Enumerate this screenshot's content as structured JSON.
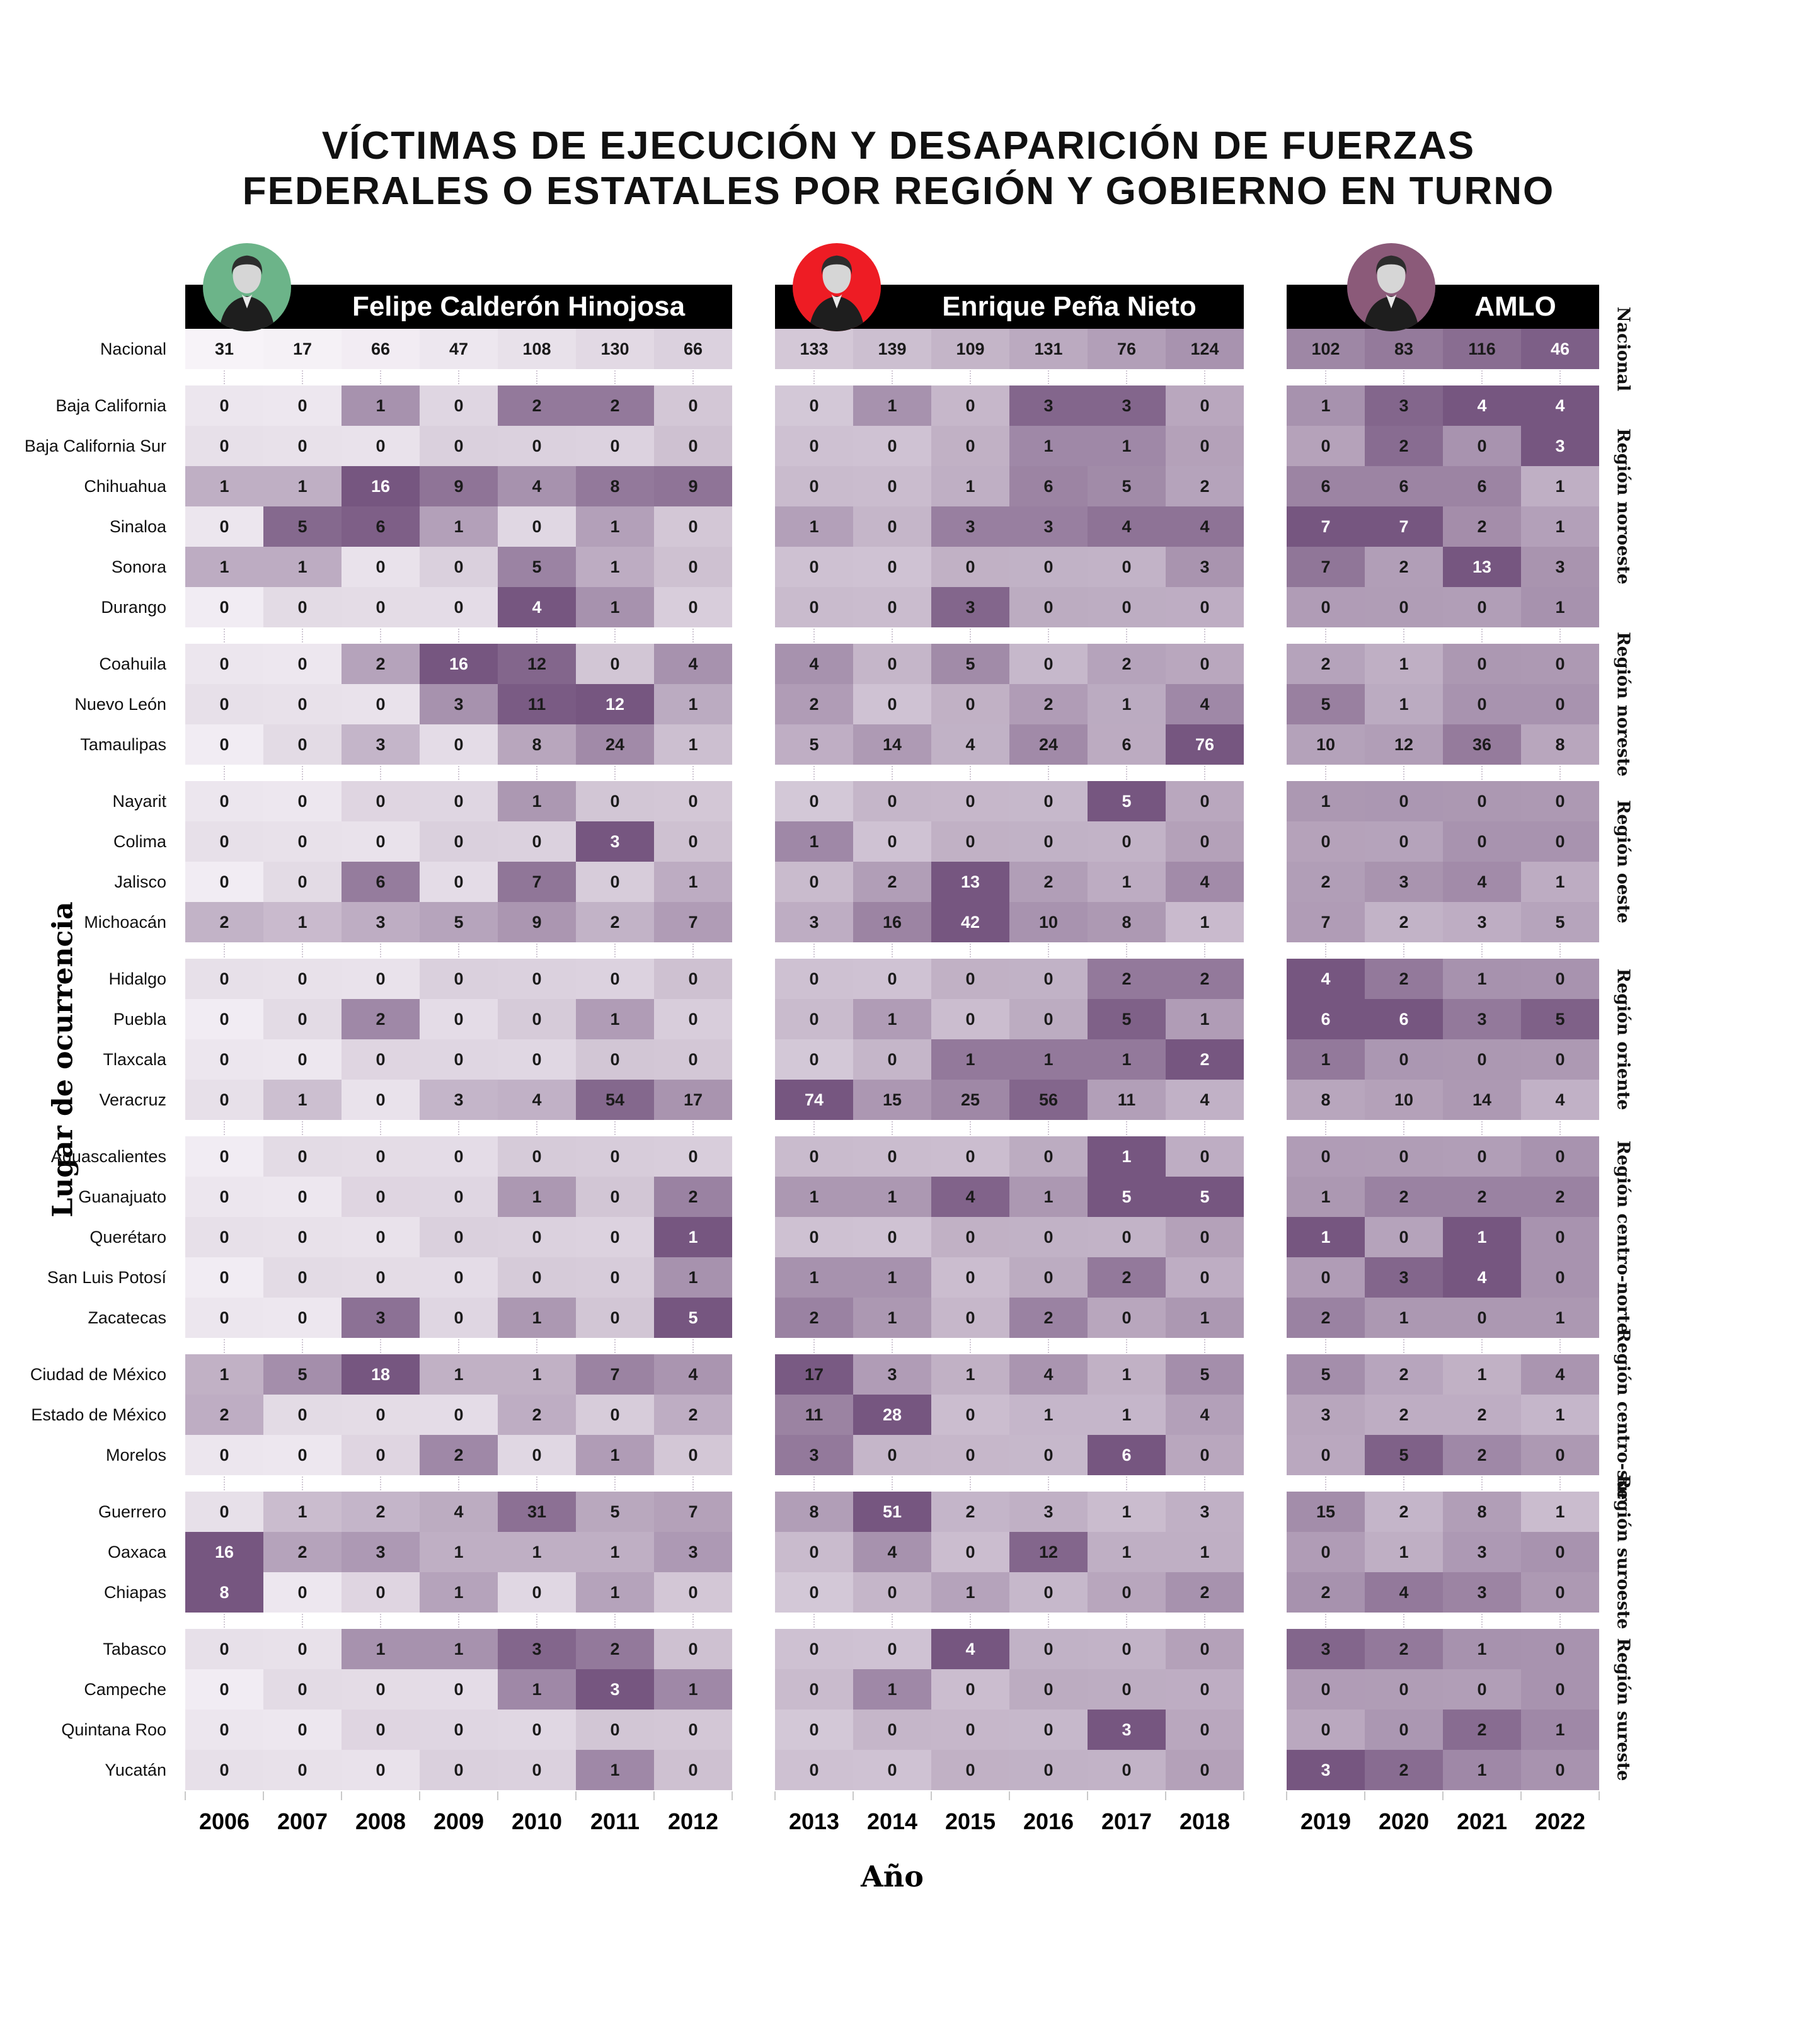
{
  "title": {
    "line1": "VÍCTIMAS DE EJECUCIÓN Y DESAPARICIÓN DE FUERZAS",
    "line2": "FEDERALES O ESTATALES POR REGIÓN Y GOBIERNO EN TURNO"
  },
  "axes": {
    "x_label": "Año",
    "y_label": "Lugar de ocurrencia"
  },
  "presidents": [
    {
      "name": "Felipe Calderón Hinojosa",
      "avatar_color": "#6cb489",
      "years": [
        2006,
        2007,
        2008,
        2009,
        2010,
        2011,
        2012
      ]
    },
    {
      "name": "Enrique Peña Nieto",
      "avatar_color": "#ee1c24",
      "years": [
        2013,
        2014,
        2015,
        2016,
        2017,
        2018
      ]
    },
    {
      "name": "AMLO",
      "avatar_color": "#8b5a79",
      "years": [
        2019,
        2020,
        2021,
        2022
      ]
    }
  ],
  "palette": {
    "heat_light": "#f7f3f8",
    "heat_dark": "#684573",
    "header_bg": "#000000",
    "header_text": "#ffffff",
    "text": "#1a1a1a",
    "text_on_dark": "#ffffff"
  },
  "chart_data": {
    "type": "heatmap",
    "title": "Víctimas de ejecución y desaparición de fuerzas federales o estatales por región y gobierno en turno",
    "xlabel": "Año",
    "ylabel": "Lugar de ocurrencia",
    "x": [
      2006,
      2007,
      2008,
      2009,
      2010,
      2011,
      2012,
      2013,
      2014,
      2015,
      2016,
      2017,
      2018,
      2019,
      2020,
      2021,
      2022
    ],
    "row_groups": [
      "Nacional",
      "Región noroeste",
      "Región noreste",
      "Región oeste",
      "Región oriente",
      "Región centro-norte",
      "Región centro-sur",
      "Región suroeste",
      "Región sureste"
    ],
    "rows": [
      {
        "label": "Nacional",
        "region": "Nacional",
        "values": [
          31,
          17,
          66,
          47,
          108,
          130,
          66,
          133,
          139,
          109,
          131,
          76,
          124,
          102,
          83,
          116,
          46
        ]
      },
      {
        "label": "Baja California",
        "region": "Región noroeste",
        "values": [
          0,
          0,
          1,
          0,
          2,
          2,
          0,
          0,
          1,
          0,
          3,
          3,
          0,
          1,
          3,
          4,
          4
        ]
      },
      {
        "label": "Baja California Sur",
        "region": "Región noroeste",
        "values": [
          0,
          0,
          0,
          0,
          0,
          0,
          0,
          0,
          0,
          0,
          1,
          1,
          0,
          0,
          2,
          0,
          3
        ]
      },
      {
        "label": "Chihuahua",
        "region": "Región noroeste",
        "values": [
          1,
          1,
          16,
          9,
          4,
          8,
          9,
          0,
          0,
          1,
          6,
          5,
          2,
          6,
          6,
          6,
          1
        ]
      },
      {
        "label": "Sinaloa",
        "region": "Región noroeste",
        "values": [
          0,
          5,
          6,
          1,
          0,
          1,
          0,
          1,
          0,
          3,
          3,
          4,
          4,
          7,
          7,
          2,
          1
        ]
      },
      {
        "label": "Sonora",
        "region": "Región noroeste",
        "values": [
          1,
          1,
          0,
          0,
          5,
          1,
          0,
          0,
          0,
          0,
          0,
          0,
          3,
          7,
          2,
          13,
          3
        ]
      },
      {
        "label": "Durango",
        "region": "Región noroeste",
        "values": [
          0,
          0,
          0,
          0,
          4,
          1,
          0,
          0,
          0,
          3,
          0,
          0,
          0,
          0,
          0,
          0,
          1
        ]
      },
      {
        "label": "Coahuila",
        "region": "Región noreste",
        "values": [
          0,
          0,
          2,
          16,
          12,
          0,
          4,
          4,
          0,
          5,
          0,
          2,
          0,
          2,
          1,
          0,
          0
        ]
      },
      {
        "label": "Nuevo León",
        "region": "Región noreste",
        "values": [
          0,
          0,
          0,
          3,
          11,
          12,
          1,
          2,
          0,
          0,
          2,
          1,
          4,
          5,
          1,
          0,
          0
        ]
      },
      {
        "label": "Tamaulipas",
        "region": "Región noreste",
        "values": [
          0,
          0,
          3,
          0,
          8,
          24,
          1,
          5,
          14,
          4,
          24,
          6,
          76,
          10,
          12,
          36,
          8
        ]
      },
      {
        "label": "Nayarit",
        "region": "Región oeste",
        "values": [
          0,
          0,
          0,
          0,
          1,
          0,
          0,
          0,
          0,
          0,
          0,
          5,
          0,
          1,
          0,
          0,
          0
        ]
      },
      {
        "label": "Colima",
        "region": "Región oeste",
        "values": [
          0,
          0,
          0,
          0,
          0,
          3,
          0,
          1,
          0,
          0,
          0,
          0,
          0,
          0,
          0,
          0,
          0
        ]
      },
      {
        "label": "Jalisco",
        "region": "Región oeste",
        "values": [
          0,
          0,
          6,
          0,
          7,
          0,
          1,
          0,
          2,
          13,
          2,
          1,
          4,
          2,
          3,
          4,
          1
        ]
      },
      {
        "label": "Michoacán",
        "region": "Región oeste",
        "values": [
          2,
          1,
          3,
          5,
          9,
          2,
          7,
          3,
          16,
          42,
          10,
          8,
          1,
          7,
          2,
          3,
          5
        ]
      },
      {
        "label": "Hidalgo",
        "region": "Región oriente",
        "values": [
          0,
          0,
          0,
          0,
          0,
          0,
          0,
          0,
          0,
          0,
          0,
          2,
          2,
          4,
          2,
          1,
          0
        ]
      },
      {
        "label": "Puebla",
        "region": "Región oriente",
        "values": [
          0,
          0,
          2,
          0,
          0,
          1,
          0,
          0,
          1,
          0,
          0,
          5,
          1,
          6,
          6,
          3,
          5
        ]
      },
      {
        "label": "Tlaxcala",
        "region": "Región oriente",
        "values": [
          0,
          0,
          0,
          0,
          0,
          0,
          0,
          0,
          0,
          1,
          1,
          1,
          2,
          1,
          0,
          0,
          0
        ]
      },
      {
        "label": "Veracruz",
        "region": "Región oriente",
        "values": [
          0,
          1,
          0,
          3,
          4,
          54,
          17,
          74,
          15,
          25,
          56,
          11,
          4,
          8,
          10,
          14,
          4
        ]
      },
      {
        "label": "Aguascalientes",
        "region": "Región centro-norte",
        "values": [
          0,
          0,
          0,
          0,
          0,
          0,
          0,
          0,
          0,
          0,
          0,
          1,
          0,
          0,
          0,
          0,
          0
        ]
      },
      {
        "label": "Guanajuato",
        "region": "Región centro-norte",
        "values": [
          0,
          0,
          0,
          0,
          1,
          0,
          2,
          1,
          1,
          4,
          1,
          5,
          5,
          1,
          2,
          2,
          2
        ]
      },
      {
        "label": "Querétaro",
        "region": "Región centro-norte",
        "values": [
          0,
          0,
          0,
          0,
          0,
          0,
          1,
          0,
          0,
          0,
          0,
          0,
          0,
          1,
          0,
          1,
          0
        ]
      },
      {
        "label": "San Luis Potosí",
        "region": "Región centro-norte",
        "values": [
          0,
          0,
          0,
          0,
          0,
          0,
          1,
          1,
          1,
          0,
          0,
          2,
          0,
          0,
          3,
          4,
          0
        ]
      },
      {
        "label": "Zacatecas",
        "region": "Región centro-norte",
        "values": [
          0,
          0,
          3,
          0,
          1,
          0,
          5,
          2,
          1,
          0,
          2,
          0,
          1,
          2,
          1,
          0,
          1
        ]
      },
      {
        "label": "Ciudad de México",
        "region": "Región centro-sur",
        "values": [
          1,
          5,
          18,
          1,
          1,
          7,
          4,
          17,
          3,
          1,
          4,
          1,
          5,
          5,
          2,
          1,
          4
        ]
      },
      {
        "label": "Estado de México",
        "region": "Región centro-sur",
        "values": [
          2,
          0,
          0,
          0,
          2,
          0,
          2,
          11,
          28,
          0,
          1,
          1,
          4,
          3,
          2,
          2,
          1
        ]
      },
      {
        "label": "Morelos",
        "region": "Región centro-sur",
        "values": [
          0,
          0,
          0,
          2,
          0,
          1,
          0,
          3,
          0,
          0,
          0,
          6,
          0,
          0,
          5,
          2,
          0
        ]
      },
      {
        "label": "Guerrero",
        "region": "Región suroeste",
        "values": [
          0,
          1,
          2,
          4,
          31,
          5,
          7,
          8,
          51,
          2,
          3,
          1,
          3,
          15,
          2,
          8,
          1
        ]
      },
      {
        "label": "Oaxaca",
        "region": "Región suroeste",
        "values": [
          16,
          2,
          3,
          1,
          1,
          1,
          3,
          0,
          4,
          0,
          12,
          1,
          1,
          0,
          1,
          3,
          0
        ]
      },
      {
        "label": "Chiapas",
        "region": "Región suroeste",
        "values": [
          8,
          0,
          0,
          1,
          0,
          1,
          0,
          0,
          0,
          1,
          0,
          0,
          2,
          2,
          4,
          3,
          0
        ]
      },
      {
        "label": "Tabasco",
        "region": "Región sureste",
        "values": [
          0,
          0,
          1,
          1,
          3,
          2,
          0,
          0,
          0,
          4,
          0,
          0,
          0,
          3,
          2,
          1,
          0
        ]
      },
      {
        "label": "Campeche",
        "region": "Región sureste",
        "values": [
          0,
          0,
          0,
          0,
          1,
          3,
          1,
          0,
          1,
          0,
          0,
          0,
          0,
          0,
          0,
          0,
          0
        ]
      },
      {
        "label": "Quintana Roo",
        "region": "Región sureste",
        "values": [
          0,
          0,
          0,
          0,
          0,
          0,
          0,
          0,
          0,
          0,
          0,
          3,
          0,
          0,
          0,
          2,
          1
        ]
      },
      {
        "label": "Yucatán",
        "region": "Región sureste",
        "values": [
          0,
          0,
          0,
          0,
          0,
          1,
          0,
          0,
          0,
          0,
          0,
          0,
          0,
          3,
          2,
          1,
          0
        ]
      }
    ]
  }
}
